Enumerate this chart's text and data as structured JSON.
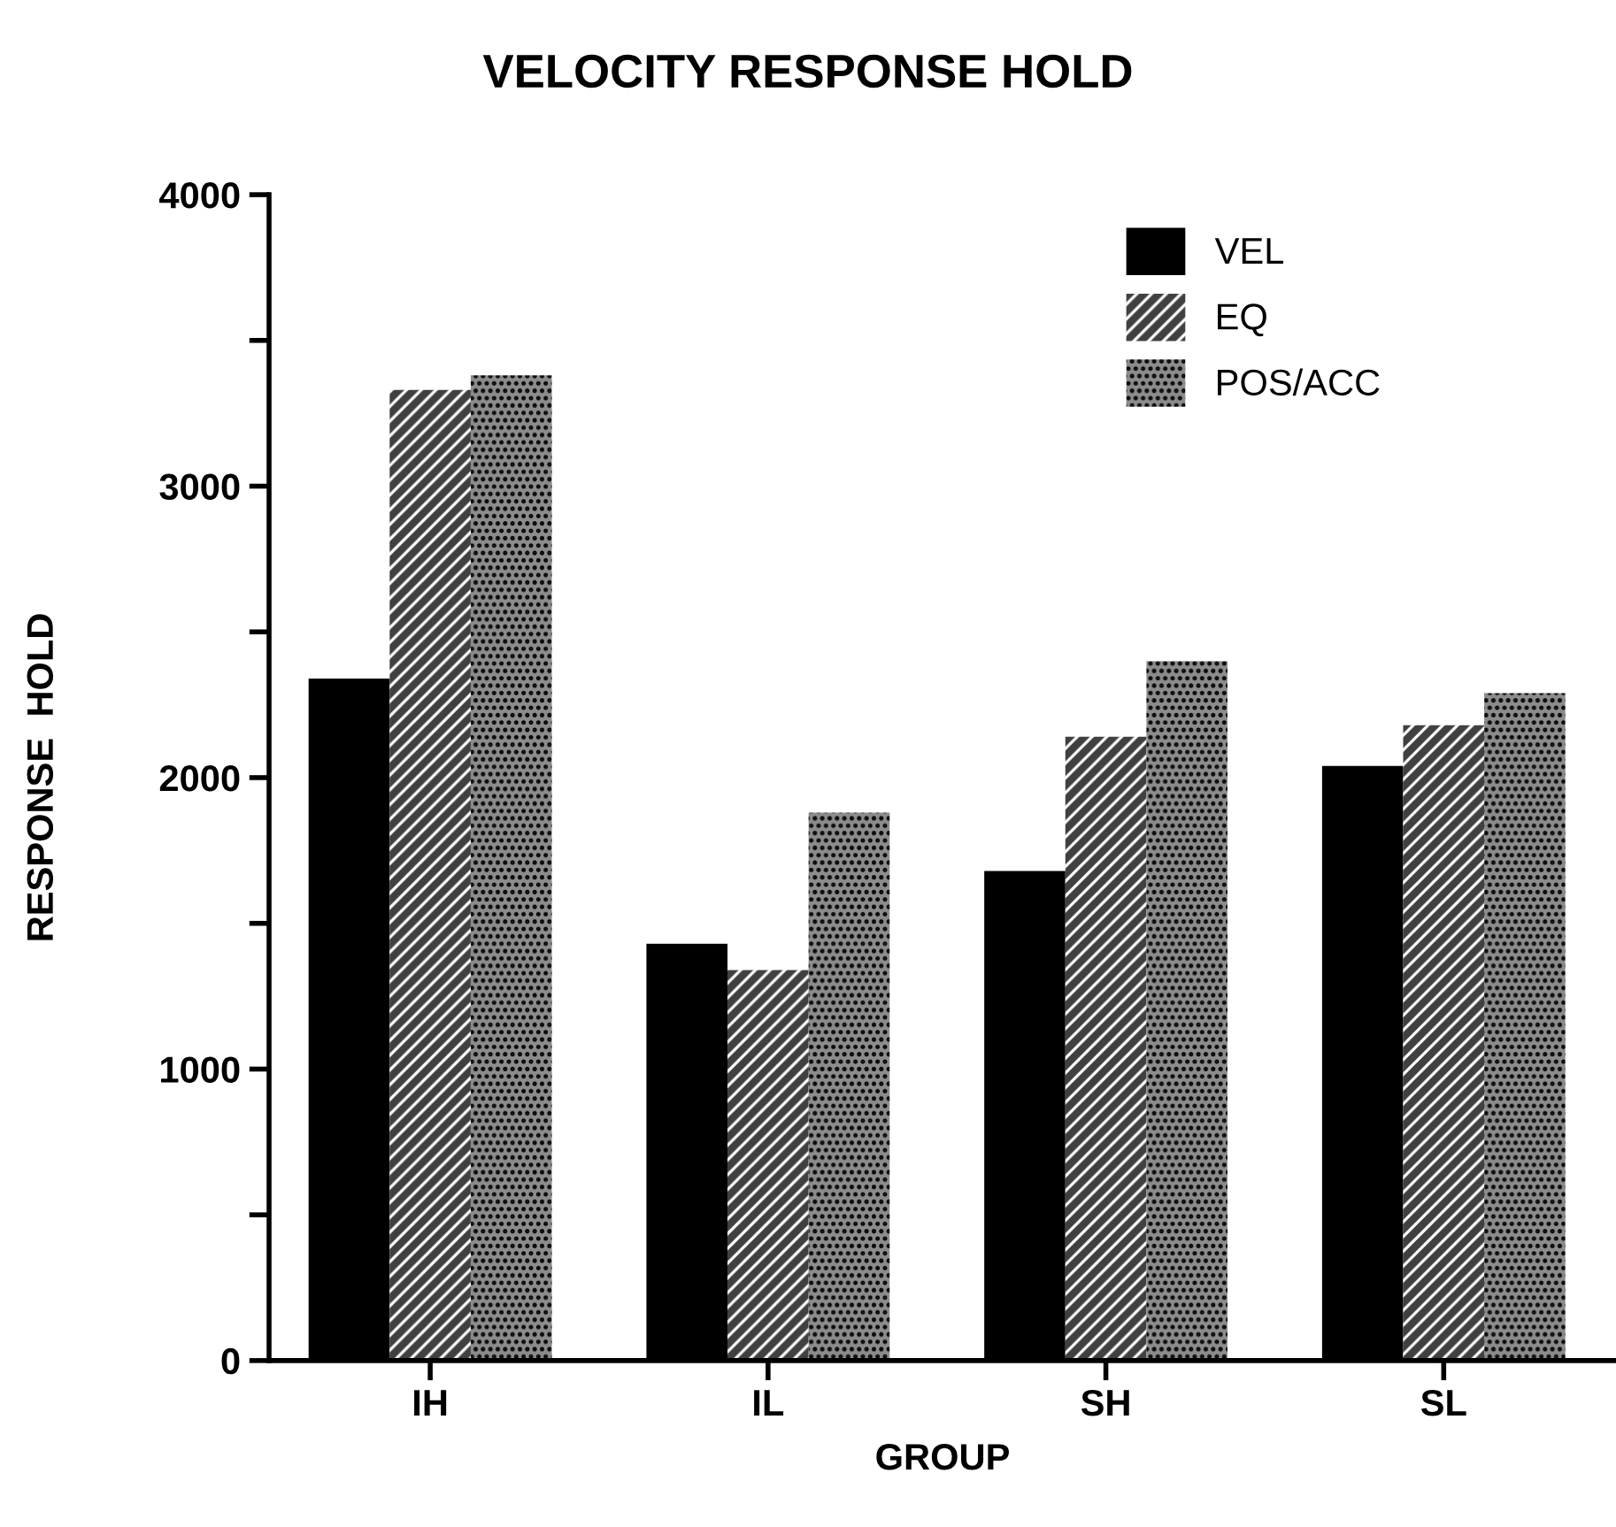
{
  "chart_data": {
    "type": "bar",
    "title": "VELOCITY RESPONSE HOLD",
    "xlabel": "GROUP",
    "ylabel": "RESPONSE  HOLD",
    "categories": [
      "IH",
      "IL",
      "SH",
      "SL"
    ],
    "series": [
      {
        "name": "VEL",
        "color": "#000000",
        "values": [
          2340,
          1430,
          1680,
          2040
        ]
      },
      {
        "name": "EQ",
        "color": "#404040",
        "values": [
          3330,
          1340,
          2140,
          2180
        ]
      },
      {
        "name": "POS/ACC",
        "color": "#8c8c8c",
        "values": [
          3380,
          1880,
          2400,
          2290
        ]
      }
    ],
    "ylim": [
      0,
      4000
    ],
    "yticks": [
      0,
      {
        "value": 500,
        "label": null
      },
      1000,
      {
        "value": 1500,
        "label": null
      },
      2000,
      {
        "value": 2500,
        "label": null
      },
      3000,
      {
        "value": 3500,
        "label": null
      },
      4000
    ],
    "grid": false,
    "legend": "top right"
  }
}
